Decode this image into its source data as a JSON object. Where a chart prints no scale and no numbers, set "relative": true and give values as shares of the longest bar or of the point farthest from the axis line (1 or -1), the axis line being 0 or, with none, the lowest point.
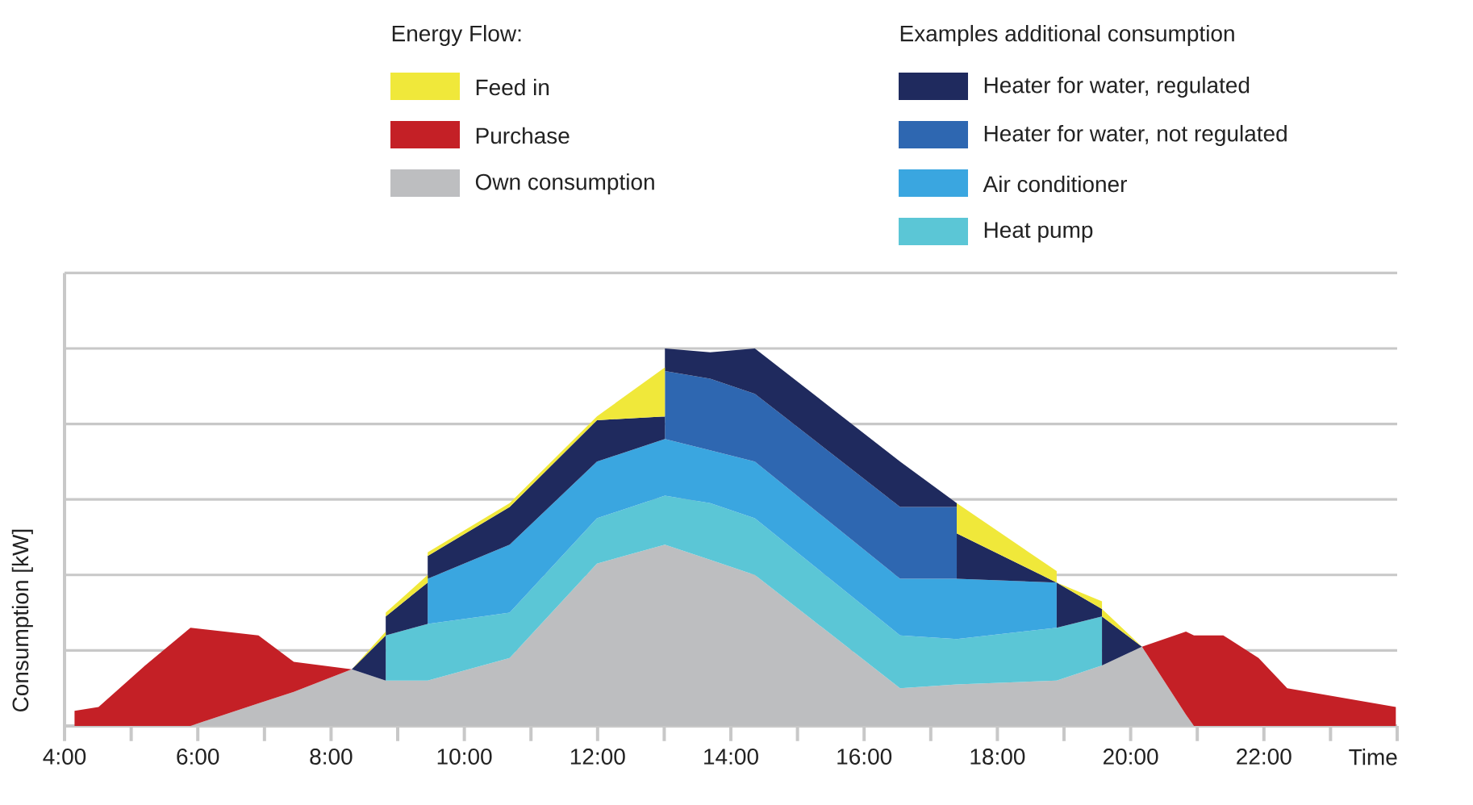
{
  "chart_data": {
    "type": "area",
    "stacked": true,
    "relative": true,
    "grid": "y",
    "legend": "top",
    "legend_title": "Energy Flow:",
    "annotations": [
      "Examples additional consumption"
    ],
    "xlabel": "Time",
    "ylabel": "Consumption [kW]",
    "xlim": [
      4,
      24
    ],
    "xticks": [
      {
        "value": 4,
        "label": "4:00"
      },
      {
        "value": 5,
        "label": null
      },
      {
        "value": 6,
        "label": "6:00"
      },
      {
        "value": 7,
        "label": null
      },
      {
        "value": 8,
        "label": "8:00"
      },
      {
        "value": 9,
        "label": null
      },
      {
        "value": 10,
        "label": "10:00"
      },
      {
        "value": 11,
        "label": null
      },
      {
        "value": 12,
        "label": "12:00"
      },
      {
        "value": 13,
        "label": null
      },
      {
        "value": 14,
        "label": "14:00"
      },
      {
        "value": 15,
        "label": null
      },
      {
        "value": 16,
        "label": "16:00"
      },
      {
        "value": 17,
        "label": null
      },
      {
        "value": 18,
        "label": "18:00"
      },
      {
        "value": 19,
        "label": null
      },
      {
        "value": 20,
        "label": "20:00"
      },
      {
        "value": 21,
        "label": null
      },
      {
        "value": 22,
        "label": "22:00"
      },
      {
        "value": 23,
        "label": null
      },
      {
        "value": 24,
        "label": null
      }
    ],
    "x": [
      4.15,
      4.51,
      5.21,
      5.89,
      6.91,
      7.44,
      8.31,
      8.82,
      8.82,
      9.45,
      9.45,
      10.68,
      11.99,
      13.01,
      13.01,
      13.69,
      14.36,
      16.54,
      17.39,
      17.39,
      18.89,
      18.89,
      19.57,
      19.57,
      20.17,
      20.83,
      20.95,
      21.39,
      21.92,
      22.35,
      23.98
    ],
    "series": [
      {
        "name": "Own consumption",
        "color": "#bdbec0",
        "values": [
          null,
          null,
          null,
          0,
          0.06,
          0.09,
          0.15,
          0.12,
          0.12,
          0.12,
          0.12,
          0.18,
          0.43,
          0.48,
          0.48,
          0.44,
          0.4,
          0.1,
          0.11,
          0.11,
          0.12,
          0.12,
          0.16,
          0.16,
          0.21,
          0.03,
          0,
          null,
          null,
          null,
          null
        ]
      },
      {
        "name": "Purchase",
        "color": "#c42026",
        "values": [
          0.04,
          0.05,
          0.16,
          0.26,
          0.18,
          0.08,
          0,
          null,
          null,
          null,
          null,
          null,
          null,
          null,
          null,
          null,
          null,
          null,
          null,
          null,
          null,
          null,
          null,
          null,
          0,
          0.22,
          0.24,
          0.24,
          0.18,
          0.1,
          0.05
        ]
      },
      {
        "name": "Heat pump",
        "color": "#5bc6d6",
        "values": [
          null,
          null,
          null,
          null,
          null,
          null,
          null,
          0,
          0.12,
          0.15,
          0.15,
          0.12,
          0.12,
          0.13,
          0.13,
          0.15,
          0.15,
          0.14,
          0.12,
          0.12,
          0.14,
          0.14,
          0.13,
          0,
          null,
          null,
          null,
          null,
          null,
          null,
          null
        ]
      },
      {
        "name": "Air conditioner",
        "color": "#3aa6e0",
        "values": [
          null,
          null,
          null,
          null,
          null,
          null,
          null,
          null,
          null,
          0,
          0.12,
          0.18,
          0.15,
          0.15,
          0.15,
          0.14,
          0.15,
          0.15,
          0.16,
          0.16,
          0.12,
          0,
          null,
          null,
          null,
          null,
          null,
          null,
          null,
          null,
          null
        ]
      },
      {
        "name": "Heater for water, not regulated",
        "color": "#2e67b1",
        "values": [
          null,
          null,
          null,
          null,
          null,
          null,
          null,
          null,
          null,
          null,
          null,
          null,
          null,
          0,
          0.18,
          0.19,
          0.18,
          0.19,
          0.19,
          0,
          null,
          null,
          null,
          null,
          null,
          null,
          null,
          null,
          null,
          null,
          null
        ]
      },
      {
        "name": "Heater for water, regulated",
        "color": "#1f2a5e",
        "values": [
          null,
          null,
          null,
          null,
          null,
          null,
          0,
          0.12,
          0.05,
          0.11,
          0.06,
          0.1,
          0.11,
          0.06,
          0.06,
          0.07,
          0.12,
          0.12,
          0.01,
          0.12,
          0,
          0.12,
          0.02,
          0.13,
          0,
          null,
          null,
          null,
          null,
          null,
          null
        ]
      },
      {
        "name": "Feed in",
        "color": "#f0e83a",
        "values": [
          null,
          null,
          null,
          null,
          null,
          null,
          0,
          0.01,
          0.01,
          0.02,
          0.01,
          0.01,
          0.01,
          0.13,
          0,
          null,
          null,
          null,
          0,
          0.08,
          0.03,
          0,
          0.02,
          0.02,
          0,
          null,
          null,
          null,
          null,
          null,
          null
        ]
      }
    ]
  }
}
